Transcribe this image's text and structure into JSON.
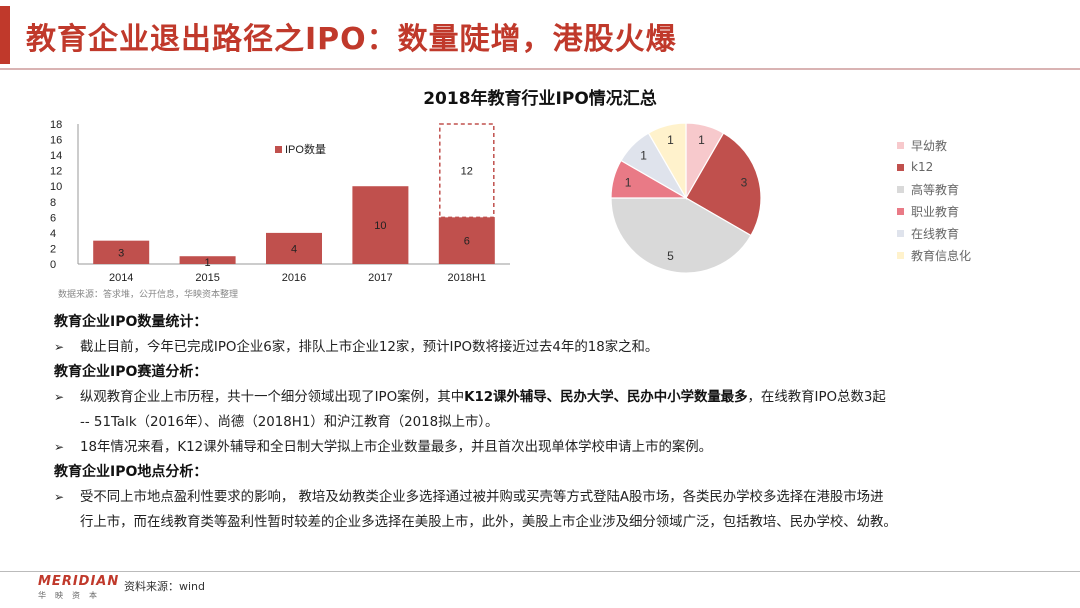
{
  "title": "教育企业退出路径之IPO：数量陡增，港股火爆",
  "chart_title": "2018年教育行业IPO情况汇总",
  "chart_data": [
    {
      "type": "bar",
      "categories": [
        "2014",
        "2015",
        "2016",
        "2017",
        "2018H1"
      ],
      "series": [
        {
          "name": "IPO数量",
          "values": [
            3,
            1,
            4,
            10,
            6
          ],
          "color": "#c0504d"
        }
      ],
      "extra_outline": {
        "category": "2018H1",
        "value": 12,
        "color": "#c0504d"
      },
      "yticks": [
        0,
        2,
        4,
        6,
        8,
        10,
        12,
        14,
        16,
        18
      ],
      "ylim": [
        0,
        18
      ],
      "legend": "top-left",
      "grid": false
    },
    {
      "type": "pie",
      "labels": [
        "早幼教",
        "k12",
        "高等教育",
        "职业教育",
        "在线教育",
        "教育信息化"
      ],
      "values": [
        1,
        3,
        5,
        1,
        1,
        1
      ],
      "colors": [
        "#f7c9cc",
        "#c0504d",
        "#d9d9d9",
        "#e97a86",
        "#dfe3ec",
        "#fff2cc"
      ],
      "legend": "right"
    }
  ],
  "chart_source": "数据来源：答求堆，公开信息，华映资本整理",
  "sections": [
    {
      "heading": "教育企业IPO数量统计：",
      "bullets": [
        {
          "mark": "➢",
          "pre": "截止目前，今年已完成IPO企业6家，排队上市企业12家，预计IPO数将接近过去4年的18家之和。",
          "bold": "",
          "post": "",
          "cont": ""
        }
      ]
    },
    {
      "heading": "教育企业IPO赛道分析：",
      "bullets": [
        {
          "mark": "➢",
          "pre": "纵观教育企业上市历程，共十一个细分领域出现了IPO案例，其中",
          "bold": "K12课外辅导、民办大学、民办中小学数量最多",
          "post": "，在线教育IPO总数3起",
          "cont": "-- 51Talk（2016年）、尚德（2018H1）和沪江教育（2018拟上市）。"
        },
        {
          "mark": "➢",
          "pre": "18年情况来看，K12课外辅导和全日制大学拟上市企业数量最多，并且首次出现单体学校申请上市的案例。",
          "bold": "",
          "post": "",
          "cont": ""
        }
      ]
    },
    {
      "heading": "教育企业IPO地点分析：",
      "bullets": [
        {
          "mark": "➢",
          "pre": "受不同上市地点盈利性要求的影响， 教培及幼教类企业多选择通过被并购或买壳等方式登陆A股市场，各类民办学校多选择在港股市场进",
          "bold": "",
          "post": "",
          "cont": "行上市，而在线教育类等盈利性暂时较差的企业多选择在美股上市，此外，美股上市企业涉及细分领域广泛，包括教培、民办学校、幼教。"
        }
      ]
    }
  ],
  "footer": {
    "logo": "MERIDIAN",
    "logo_sub": "华映资本",
    "source": "资料来源：wind"
  },
  "colors": {
    "accent": "#c0392b",
    "bar": "#c0504d"
  }
}
